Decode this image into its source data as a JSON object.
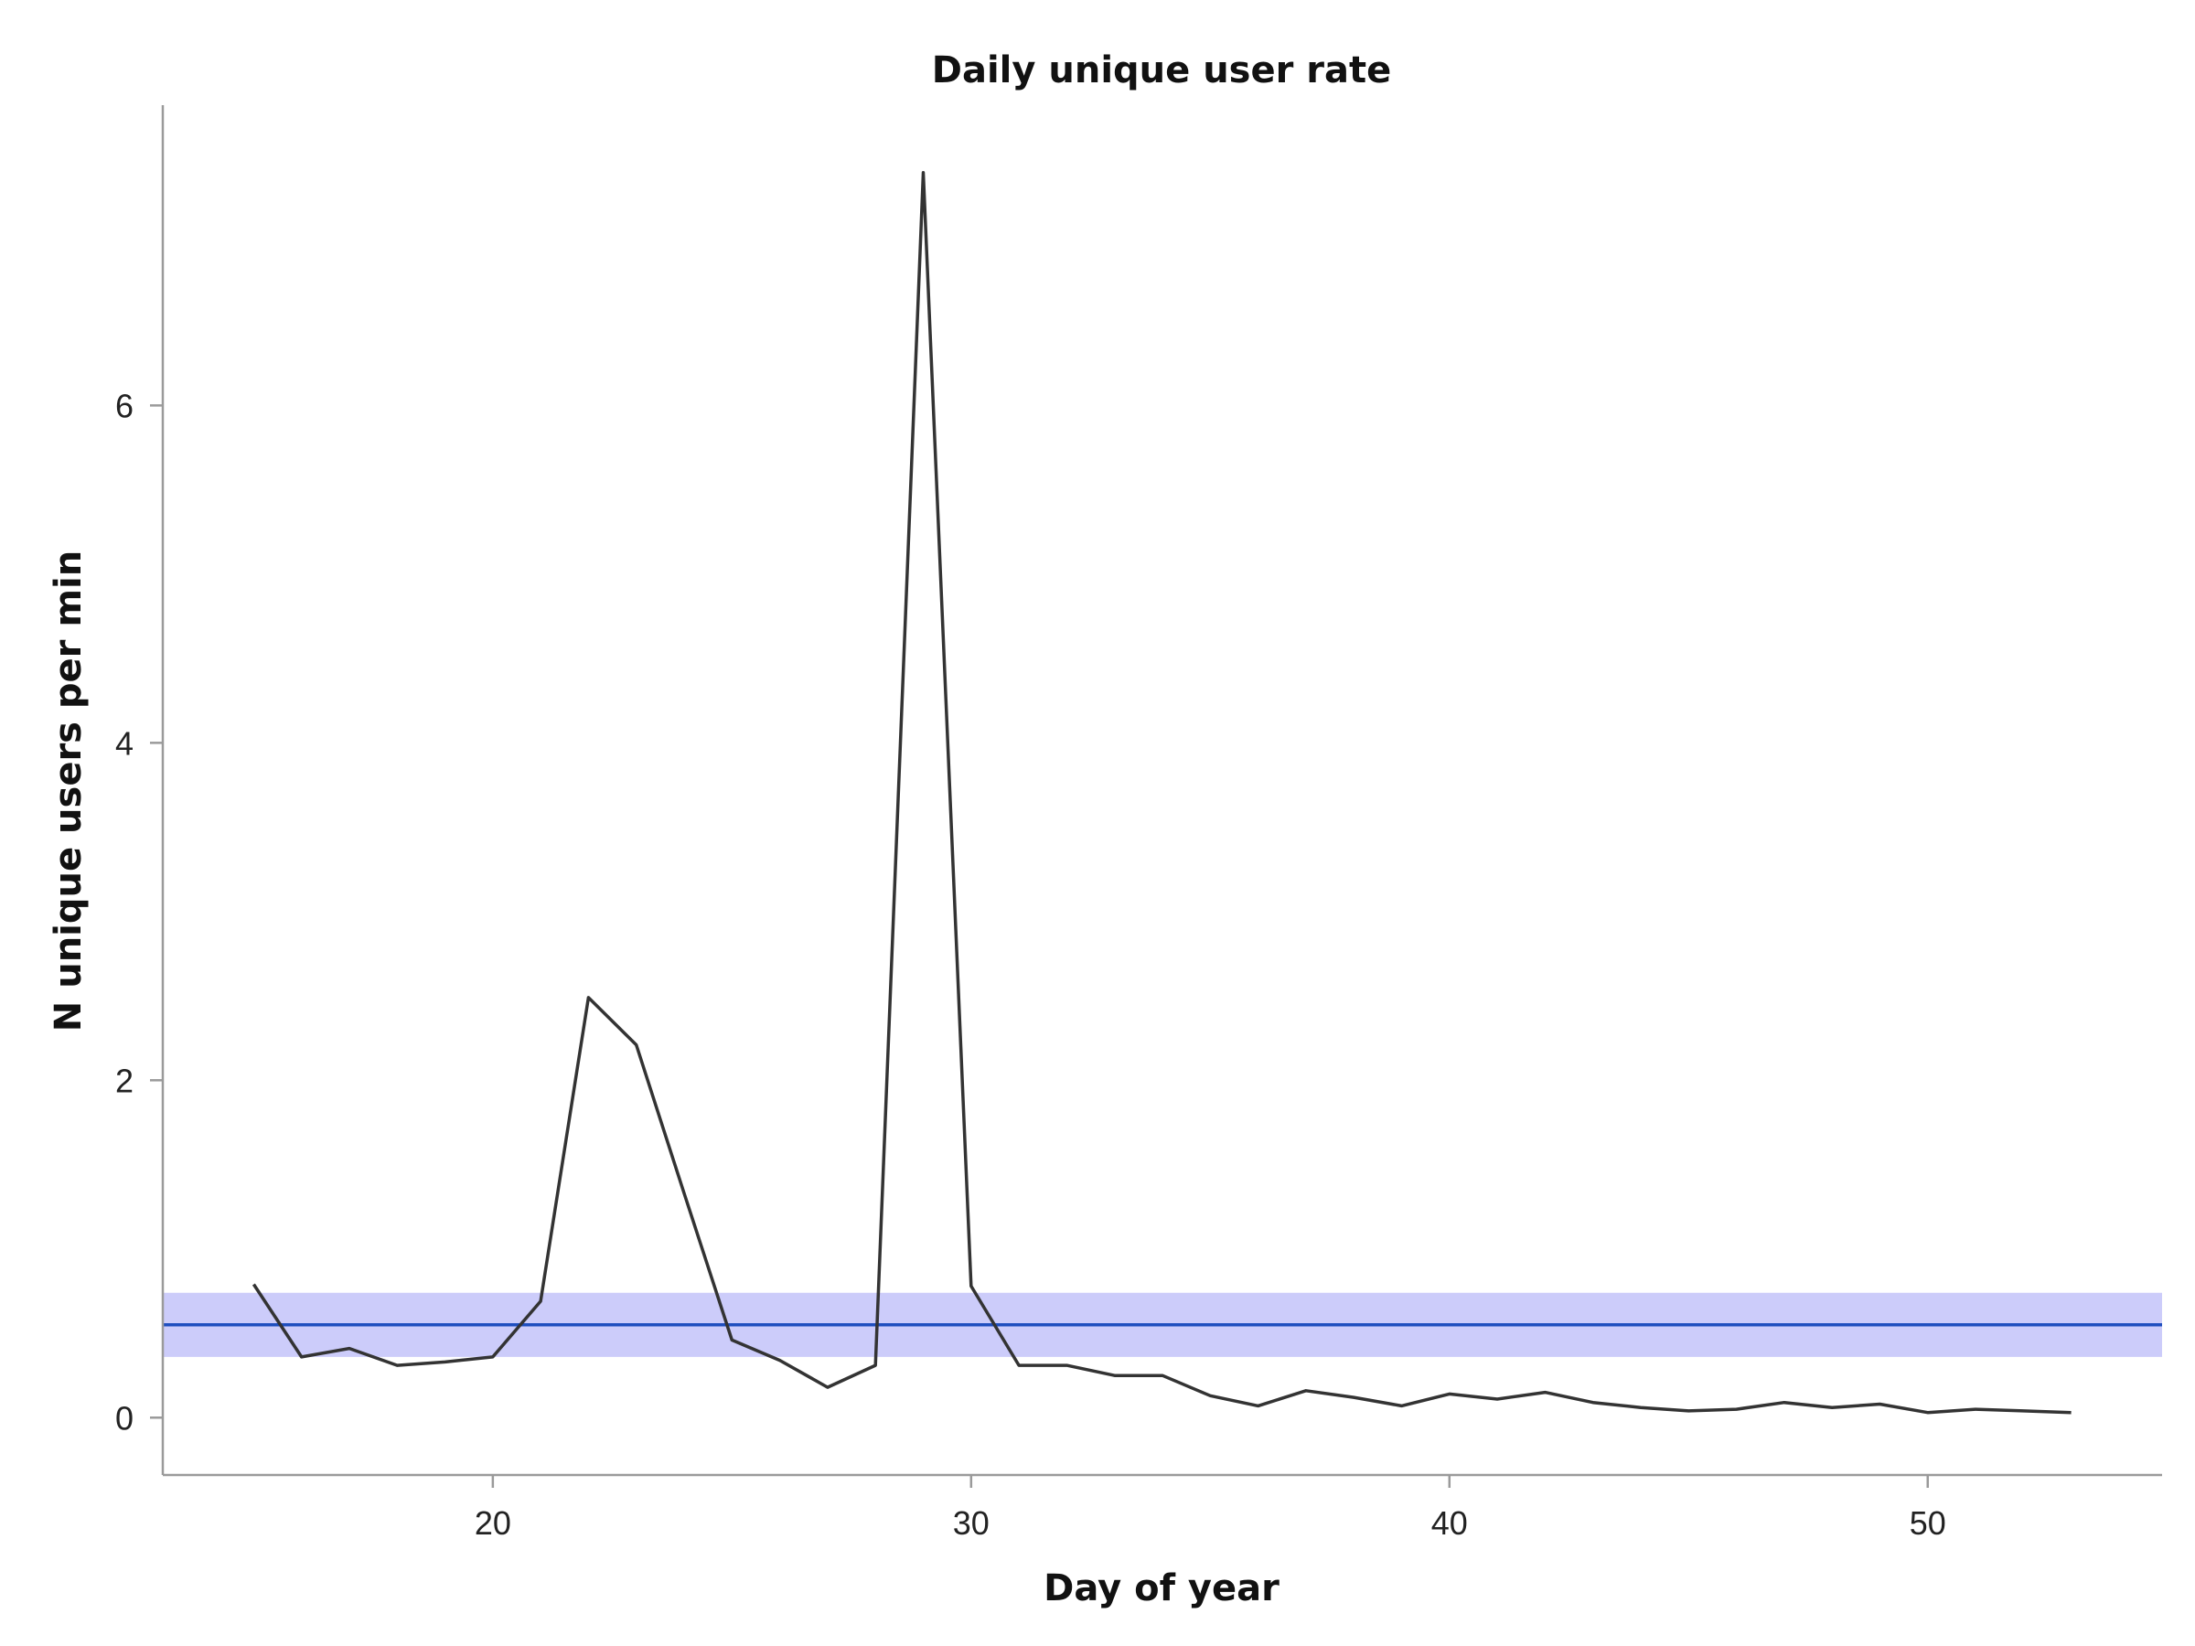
{
  "chart_data": {
    "type": "line",
    "title": "Daily unique user rate",
    "xlabel": "Day of year",
    "ylabel": "N unique users per min",
    "xlim": [
      13.1,
      54.9
    ],
    "ylim": [
      -0.34,
      7.78
    ],
    "xticks": [
      20,
      30,
      40,
      50
    ],
    "yticks": [
      0,
      2,
      4,
      6
    ],
    "grid": false,
    "legend": "none",
    "series": [
      {
        "x": [
          15,
          16,
          17,
          18,
          19,
          20,
          21,
          22,
          23,
          24,
          25,
          26,
          27,
          28,
          29,
          30,
          31,
          32,
          33,
          34,
          35,
          36,
          37,
          38,
          39,
          40,
          41,
          42,
          43,
          44,
          45,
          46,
          47,
          48,
          49,
          50,
          51,
          52,
          53
        ],
        "y": [
          0.79,
          0.36,
          0.41,
          0.31,
          0.33,
          0.36,
          0.69,
          2.49,
          2.21,
          1.33,
          0.46,
          0.34,
          0.18,
          0.31,
          7.38,
          0.78,
          0.31,
          0.31,
          0.25,
          0.25,
          0.13,
          0.07,
          0.16,
          0.12,
          0.07,
          0.14,
          0.11,
          0.15,
          0.09,
          0.06,
          0.04,
          0.05,
          0.09,
          0.06,
          0.08,
          0.03,
          0.05,
          0.04,
          0.03
        ],
        "color": "#333333"
      }
    ],
    "reference_line": {
      "value": 0.55,
      "band": [
        0.36,
        0.74
      ],
      "line_color": "#1f4fbf",
      "band_color": "#ccccfa"
    }
  }
}
